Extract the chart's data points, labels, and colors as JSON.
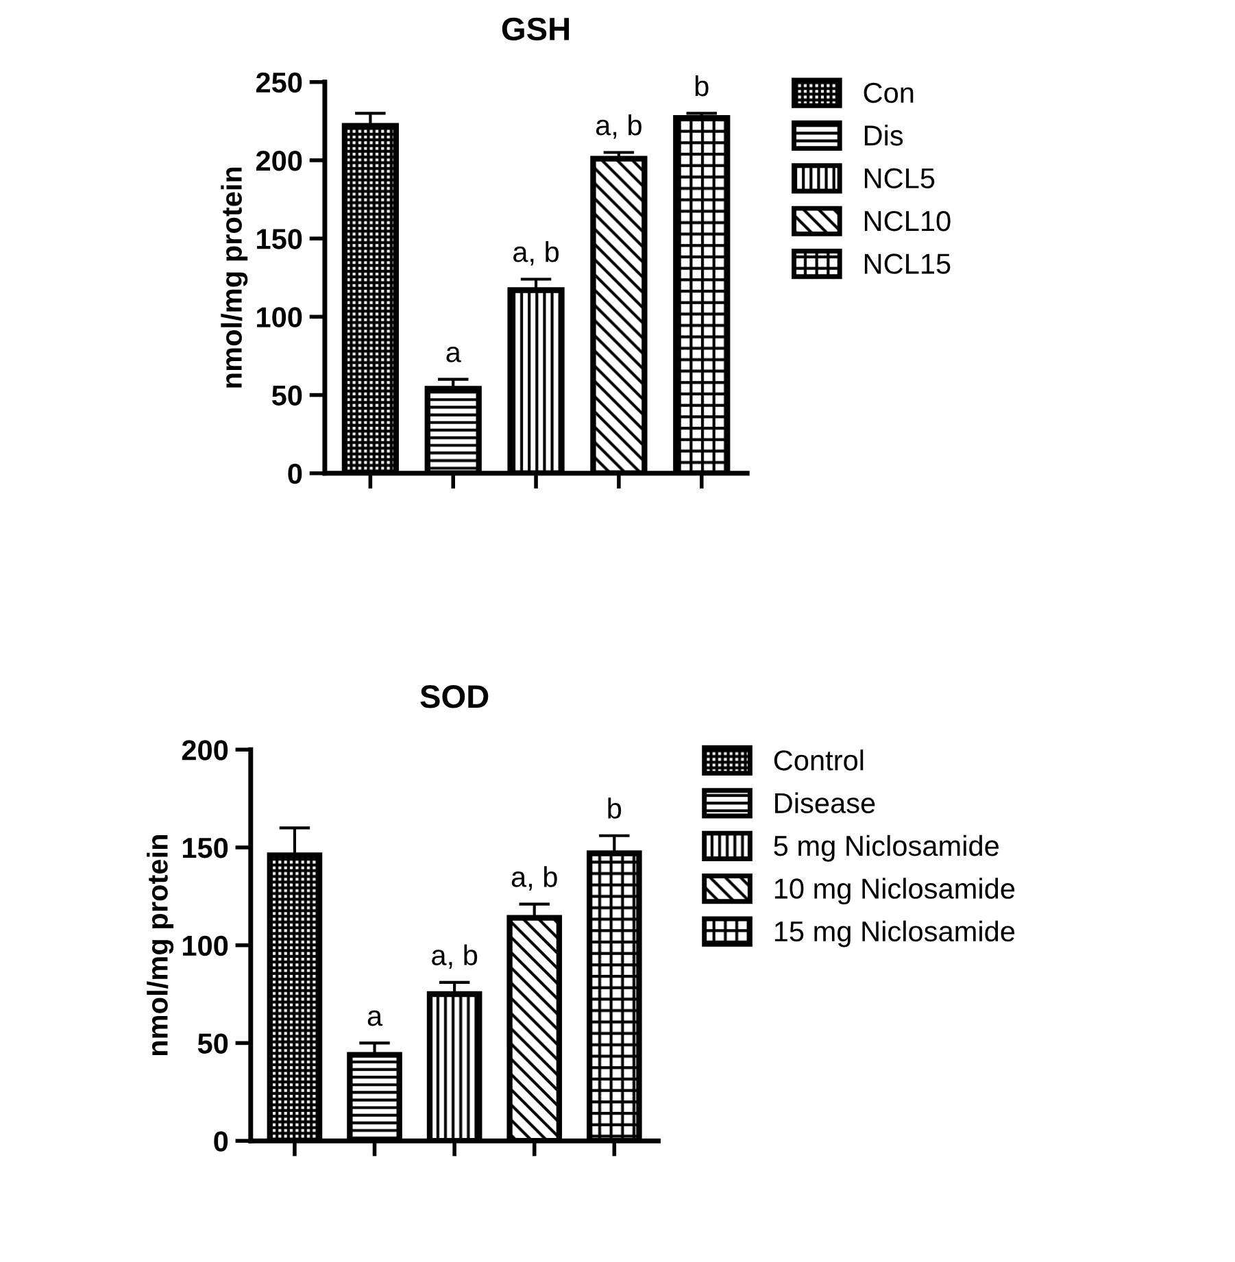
{
  "chart_data": [
    {
      "type": "bar",
      "title": "GSH",
      "ylabel": "nmol/mg protein",
      "categories": [
        null,
        null,
        null,
        null,
        null
      ],
      "ylim": [
        0,
        250
      ],
      "yticks": [
        0,
        50,
        100,
        150,
        200,
        250
      ],
      "tick_labels": "y",
      "legend": "right",
      "grid": false,
      "series": [
        {
          "name": "Con",
          "color": "#000000",
          "values": [
            222,
            null,
            null,
            null,
            null
          ],
          "errors": [
            8,
            null,
            null,
            null,
            null
          ]
        },
        {
          "name": "Dis",
          "color": "#000000",
          "values": [
            null,
            54,
            null,
            null,
            null
          ],
          "errors": [
            null,
            6,
            null,
            null,
            null
          ],
          "value_labels": [
            null,
            "a",
            null,
            null,
            null
          ]
        },
        {
          "name": "NCL5",
          "color": "#000000",
          "values": [
            null,
            null,
            117,
            null,
            null
          ],
          "errors": [
            null,
            null,
            7,
            null,
            null
          ],
          "value_labels": [
            null,
            null,
            "a, b",
            null,
            null
          ]
        },
        {
          "name": "NCL10",
          "color": "#000000",
          "values": [
            null,
            null,
            null,
            201,
            null
          ],
          "errors": [
            null,
            null,
            null,
            4,
            null
          ],
          "value_labels": [
            null,
            null,
            null,
            "a, b",
            null
          ]
        },
        {
          "name": "NCL15",
          "color": "#000000",
          "values": [
            null,
            null,
            null,
            null,
            227
          ],
          "errors": [
            null,
            null,
            null,
            null,
            3
          ],
          "value_labels": [
            null,
            null,
            null,
            null,
            "b"
          ]
        }
      ]
    },
    {
      "type": "bar",
      "title": "SOD",
      "ylabel": "nmol/mg protein",
      "categories": [
        null,
        null,
        null,
        null,
        null
      ],
      "ylim": [
        0,
        200
      ],
      "yticks": [
        0,
        50,
        100,
        150,
        200
      ],
      "tick_labels": "y",
      "legend": "right",
      "grid": false,
      "series": [
        {
          "name": "Control",
          "color": "#000000",
          "values": [
            146,
            null,
            null,
            null,
            null
          ],
          "errors": [
            14,
            null,
            null,
            null,
            null
          ]
        },
        {
          "name": "Disease",
          "color": "#000000",
          "values": [
            null,
            44,
            null,
            null,
            null
          ],
          "errors": [
            null,
            6,
            null,
            null,
            null
          ],
          "value_labels": [
            null,
            "a",
            null,
            null,
            null
          ]
        },
        {
          "name": "5 mg Niclosamide",
          "color": "#000000",
          "values": [
            null,
            null,
            75,
            null,
            null
          ],
          "errors": [
            null,
            null,
            6,
            null,
            null
          ],
          "value_labels": [
            null,
            null,
            "a, b",
            null,
            null
          ]
        },
        {
          "name": "10 mg Niclosamide",
          "color": "#000000",
          "values": [
            null,
            null,
            null,
            114,
            null
          ],
          "errors": [
            null,
            null,
            null,
            7,
            null
          ],
          "value_labels": [
            null,
            null,
            null,
            "a, b",
            null
          ]
        },
        {
          "name": "15 mg Niclosamide",
          "color": "#000000",
          "values": [
            null,
            null,
            null,
            null,
            147
          ],
          "errors": [
            null,
            null,
            null,
            null,
            9
          ],
          "value_labels": [
            null,
            null,
            null,
            null,
            "b"
          ]
        }
      ]
    }
  ]
}
